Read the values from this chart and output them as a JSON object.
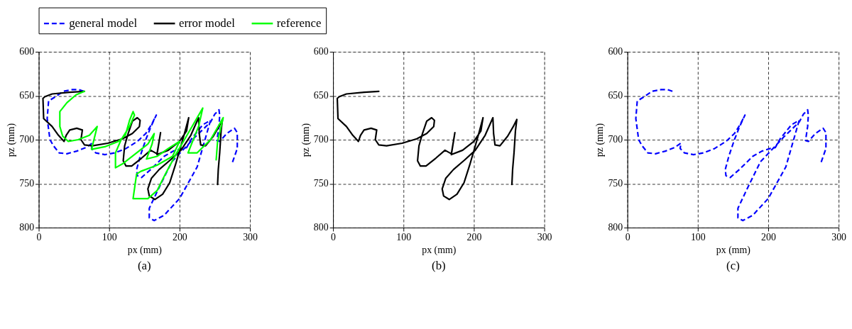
{
  "chart_data": [
    {
      "type": "line",
      "annotations": [
        "(a)"
      ],
      "xlabel": "px (mm)",
      "ylabel": "pz (mm)",
      "xlim": [
        0,
        300
      ],
      "xticks": [
        0,
        100,
        200,
        300
      ],
      "ylim": [
        800,
        600
      ],
      "yticks": [
        600,
        650,
        700,
        750,
        800
      ],
      "grid": true,
      "legend": "top",
      "series": [
        {
          "name": "general model",
          "color": "#0000ff",
          "line_style": "dashed",
          "x": [
            64,
            57,
            48,
            35,
            22,
            14,
            12,
            16,
            21,
            29,
            40,
            54,
            67,
            76,
            75,
            81,
            94,
            108,
            124,
            140,
            152,
            160,
            167,
            160,
            152,
            144,
            139,
            140,
            146,
            159,
            178,
            191,
            203,
            210,
            217,
            233,
            244,
            225,
            200,
            178,
            164,
            157,
            157,
            170,
            189,
            201,
            222,
            244,
            250,
            256,
            257,
            256,
            253,
            257,
            267,
            278,
            282,
            282,
            275
          ],
          "values": [
            645,
            643,
            643,
            645,
            652,
            656,
            676,
            700,
            707,
            715,
            716,
            713,
            709,
            704,
            710,
            715,
            717,
            715,
            710,
            702,
            693,
            683,
            672,
            684,
            700,
            719,
            734,
            741,
            743,
            734,
            719,
            713,
            710,
            709,
            699,
            683,
            678,
            731,
            767,
            786,
            792,
            789,
            778,
            756,
            725,
            715,
            697,
            680,
            671,
            666,
            672,
            685,
            701,
            702,
            693,
            687,
            692,
            710,
            726
          ]
        },
        {
          "name": "error model",
          "color": "#000000",
          "line_style": "solid",
          "x": [
            65,
            44,
            19,
            9,
            6,
            7,
            19,
            28,
            36,
            39,
            44,
            54,
            62,
            60,
            65,
            76,
            98,
            119,
            133,
            143,
            144,
            140,
            133,
            127,
            122,
            120,
            124,
            132,
            146,
            159,
            168,
            173,
            168,
            184,
            200,
            210,
            213,
            208,
            202,
            194,
            186,
            176,
            165,
            157,
            155,
            160,
            171,
            187,
            202,
            216,
            227,
            228,
            230,
            237,
            248,
            256,
            261,
            259,
            257,
            255,
            254
          ],
          "values": [
            645,
            646,
            648,
            651,
            653,
            676,
            685,
            695,
            702,
            695,
            689,
            687,
            689,
            700,
            706,
            707,
            704,
            699,
            693,
            685,
            678,
            675,
            679,
            693,
            707,
            724,
            730,
            730,
            721,
            712,
            716,
            692,
            717,
            712,
            702,
            690,
            675,
            690,
            707,
            729,
            749,
            762,
            768,
            764,
            756,
            744,
            734,
            723,
            712,
            695,
            675,
            693,
            706,
            707,
            696,
            685,
            677,
            690,
            715,
            734,
            751
          ]
        },
        {
          "name": "reference",
          "color": "#00ff00",
          "line_style": "solid",
          "x": [
            65,
            53,
            40,
            30,
            30,
            34,
            42,
            56,
            72,
            83,
            75,
            94,
            113,
            123,
            129,
            134,
            136,
            129,
            117,
            109,
            109,
            120,
            139,
            155,
            164,
            161,
            153,
            168,
            184,
            200,
            190,
            168,
            145,
            139,
            134,
            155,
            168,
            180,
            196,
            212,
            233,
            227,
            212,
            225,
            244,
            262,
            254,
            252
          ],
          "values": [
            645,
            649,
            658,
            668,
            685,
            696,
            702,
            700,
            695,
            685,
            711,
            708,
            702,
            695,
            678,
            668,
            672,
            685,
            700,
            715,
            732,
            727,
            715,
            705,
            693,
            705,
            722,
            719,
            710,
            702,
            719,
            729,
            736,
            739,
            767,
            767,
            758,
            739,
            715,
            693,
            664,
            685,
            715,
            715,
            700,
            675,
            702,
            723
          ]
        }
      ]
    },
    {
      "type": "line",
      "annotations": [
        "(b)"
      ],
      "xlabel": "px (mm)",
      "ylabel": "pz (mm)",
      "xlim": [
        0,
        300
      ],
      "xticks": [
        0,
        100,
        200,
        300
      ],
      "ylim": [
        800,
        600
      ],
      "yticks": [
        600,
        650,
        700,
        750,
        800
      ],
      "grid": true,
      "series": [
        {
          "name": "error model",
          "color": "#000000",
          "line_style": "solid",
          "x": [
            65,
            44,
            19,
            9,
            6,
            7,
            19,
            28,
            36,
            39,
            44,
            54,
            62,
            60,
            65,
            76,
            98,
            119,
            133,
            143,
            144,
            140,
            133,
            127,
            122,
            120,
            124,
            132,
            146,
            159,
            168,
            173,
            168,
            184,
            200,
            210,
            213,
            208,
            202,
            194,
            186,
            176,
            165,
            157,
            155,
            160,
            171,
            187,
            202,
            216,
            227,
            228,
            230,
            237,
            248,
            256,
            261,
            259,
            257,
            255,
            254
          ],
          "values": [
            645,
            646,
            648,
            651,
            653,
            676,
            685,
            695,
            702,
            695,
            689,
            687,
            689,
            700,
            706,
            707,
            704,
            699,
            693,
            685,
            678,
            675,
            679,
            693,
            707,
            724,
            730,
            730,
            721,
            712,
            716,
            692,
            717,
            712,
            702,
            690,
            675,
            690,
            707,
            729,
            749,
            762,
            768,
            764,
            756,
            744,
            734,
            723,
            712,
            695,
            675,
            693,
            706,
            707,
            696,
            685,
            677,
            690,
            715,
            734,
            751
          ]
        }
      ]
    },
    {
      "type": "line",
      "annotations": [
        "(c)"
      ],
      "xlabel": "px (mm)",
      "ylabel": "pz (mm)",
      "xlim": [
        0,
        300
      ],
      "xticks": [
        0,
        100,
        200,
        300
      ],
      "ylim": [
        800,
        600
      ],
      "yticks": [
        600,
        650,
        700,
        750,
        800
      ],
      "grid": true,
      "series": [
        {
          "name": "general model",
          "color": "#0000ff",
          "line_style": "dashed",
          "x": [
            64,
            57,
            48,
            35,
            22,
            14,
            12,
            16,
            21,
            29,
            40,
            54,
            67,
            76,
            75,
            81,
            94,
            108,
            124,
            140,
            152,
            160,
            167,
            160,
            152,
            144,
            139,
            140,
            146,
            159,
            178,
            191,
            203,
            210,
            217,
            233,
            244,
            225,
            200,
            178,
            164,
            157,
            157,
            170,
            189,
            201,
            222,
            244,
            250,
            256,
            257,
            256,
            253,
            257,
            267,
            278,
            282,
            282,
            275
          ],
          "values": [
            645,
            643,
            643,
            645,
            652,
            656,
            676,
            700,
            707,
            715,
            716,
            713,
            709,
            704,
            710,
            715,
            717,
            715,
            710,
            702,
            693,
            683,
            672,
            684,
            700,
            719,
            734,
            741,
            743,
            734,
            719,
            713,
            710,
            709,
            699,
            683,
            678,
            731,
            767,
            786,
            792,
            789,
            778,
            756,
            725,
            715,
            697,
            680,
            671,
            666,
            672,
            685,
            701,
            702,
            693,
            687,
            692,
            710,
            726
          ]
        }
      ]
    }
  ]
}
